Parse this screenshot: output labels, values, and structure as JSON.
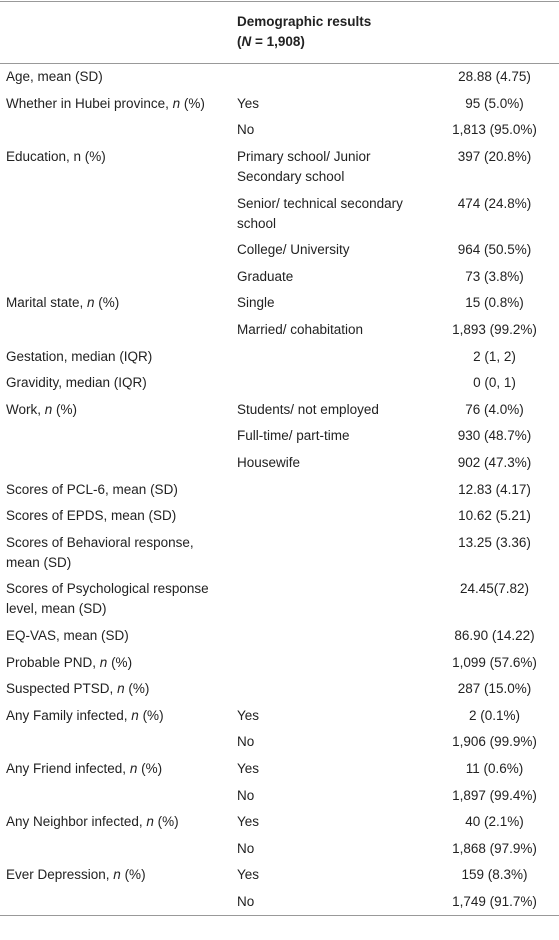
{
  "table": {
    "header": {
      "title": "Demographic results",
      "subtitle": [
        "(",
        "N",
        " = 1,908)"
      ]
    },
    "rows": [
      {
        "label": [
          "Age, mean (SD)"
        ],
        "value": "28.88 (4.75)"
      },
      {
        "label": [
          "Whether in Hubei province, ",
          "n",
          " (%)"
        ],
        "group": "Yes",
        "value": "95 (5.0%)"
      },
      {
        "group": "No",
        "value": "1,813 (95.0%)"
      },
      {
        "label": [
          "Education, n (%)"
        ],
        "group": "Primary school/ Junior Secondary school",
        "value": "397 (20.8%)"
      },
      {
        "group": "Senior/ technical secondary school",
        "value": "474 (24.8%)"
      },
      {
        "group": "College/ University",
        "value": "964 (50.5%)"
      },
      {
        "group": "Graduate",
        "value": "73 (3.8%)"
      },
      {
        "label": [
          "Marital state, ",
          "n",
          " (%)"
        ],
        "group": "Single",
        "value": "15 (0.8%)"
      },
      {
        "group": "Married/ cohabitation",
        "value": "1,893 (99.2%)"
      },
      {
        "label": [
          "Gestation, median (IQR)"
        ],
        "value": "2 (1, 2)"
      },
      {
        "label": [
          "Gravidity, median (IQR)"
        ],
        "value": "0 (0, 1)"
      },
      {
        "label": [
          "Work, ",
          "n",
          " (%)"
        ],
        "group": "Students/ not employed",
        "value": "76 (4.0%)"
      },
      {
        "group": "Full-time/ part-time",
        "value": "930 (48.7%)"
      },
      {
        "group": "Housewife",
        "value": "902 (47.3%)"
      },
      {
        "label": [
          "Scores of PCL-6, mean (SD)"
        ],
        "value": "12.83 (4.17)"
      },
      {
        "label": [
          "Scores of EPDS, mean (SD)"
        ],
        "value": "10.62 (5.21)"
      },
      {
        "label": [
          "Scores of Behavioral response, mean (SD)"
        ],
        "value": "13.25 (3.36)"
      },
      {
        "label": [
          "Scores of Psychological response level, mean (SD)"
        ],
        "value": "24.45(7.82)"
      },
      {
        "label": [
          "EQ-VAS, mean (SD)"
        ],
        "value": "86.90 (14.22)"
      },
      {
        "label": [
          "Probable PND, ",
          "n",
          " (%)"
        ],
        "value": "1,099 (57.6%)"
      },
      {
        "label": [
          "Suspected PTSD, ",
          "n",
          " (%)"
        ],
        "value": "287 (15.0%)"
      },
      {
        "label": [
          "Any Family infected, ",
          "n",
          " (%)"
        ],
        "group": "Yes",
        "value": "2 (0.1%)"
      },
      {
        "group": "No",
        "value": "1,906 (99.9%)"
      },
      {
        "label": [
          "Any Friend infected, ",
          "n",
          " (%)"
        ],
        "group": "Yes",
        "value": "11 (0.6%)"
      },
      {
        "group": "No",
        "value": "1,897 (99.4%)"
      },
      {
        "label": [
          "Any Neighbor infected, ",
          "n",
          " (%)"
        ],
        "group": "Yes",
        "value": "40 (2.1%)"
      },
      {
        "group": "No",
        "value": "1,868 (97.9%)"
      },
      {
        "label": [
          "Ever Depression, ",
          "n",
          " (%)"
        ],
        "group": "Yes",
        "value": "159 (8.3%)"
      },
      {
        "group": "No",
        "value": "1,749 (91.7%)"
      }
    ]
  }
}
